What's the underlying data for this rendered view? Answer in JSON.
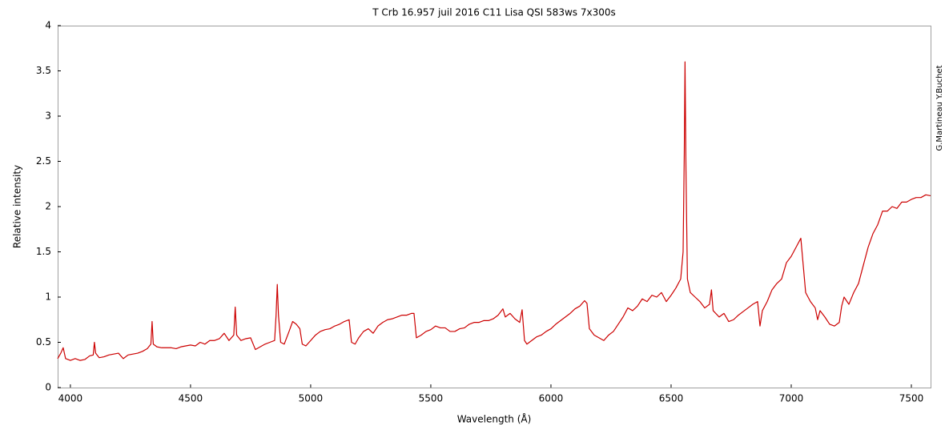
{
  "chart_data": {
    "type": "line",
    "title": "T Crb  16.957 juil 2016   C11  Lisa  QSI 583ws  7x300s",
    "xlabel": "Wavelength (Å)",
    "ylabel": "Relative intensity",
    "annotation": "G.Martineau Y.Buchet",
    "color": "#cc0000",
    "grid": false,
    "xlim": [
      3947,
      7580
    ],
    "xticks": [
      4000,
      4500,
      5000,
      5500,
      6000,
      6500,
      7000,
      7500
    ],
    "ylim": [
      0,
      4
    ],
    "yticks": [
      0,
      0.5,
      1,
      1.5,
      2,
      2.5,
      3,
      3.5,
      4
    ],
    "x": [
      3947,
      3960,
      3970,
      3980,
      4000,
      4020,
      4040,
      4060,
      4080,
      4095,
      4100,
      4105,
      4120,
      4140,
      4160,
      4180,
      4200,
      4220,
      4240,
      4260,
      4280,
      4300,
      4320,
      4335,
      4340,
      4345,
      4360,
      4380,
      4400,
      4420,
      4440,
      4460,
      4480,
      4500,
      4520,
      4540,
      4560,
      4580,
      4600,
      4620,
      4640,
      4660,
      4680,
      4686,
      4692,
      4710,
      4730,
      4750,
      4770,
      4790,
      4810,
      4830,
      4850,
      4856,
      4861,
      4866,
      4875,
      4890,
      4910,
      4925,
      4940,
      4955,
      4965,
      4980,
      5000,
      5020,
      5040,
      5060,
      5080,
      5100,
      5120,
      5140,
      5160,
      5170,
      5185,
      5200,
      5220,
      5240,
      5260,
      5280,
      5300,
      5320,
      5340,
      5360,
      5380,
      5400,
      5420,
      5430,
      5440,
      5460,
      5480,
      5500,
      5520,
      5540,
      5560,
      5580,
      5600,
      5620,
      5640,
      5660,
      5680,
      5700,
      5720,
      5740,
      5760,
      5780,
      5800,
      5810,
      5830,
      5850,
      5870,
      5880,
      5890,
      5900,
      5920,
      5940,
      5960,
      5980,
      6000,
      6020,
      6040,
      6060,
      6080,
      6100,
      6120,
      6140,
      6150,
      6160,
      6180,
      6200,
      6220,
      6240,
      6260,
      6280,
      6300,
      6320,
      6340,
      6360,
      6380,
      6400,
      6420,
      6440,
      6460,
      6480,
      6500,
      6520,
      6540,
      6550,
      6555,
      6558,
      6562,
      6568,
      6580,
      6600,
      6620,
      6640,
      6660,
      6668,
      6675,
      6700,
      6720,
      6740,
      6760,
      6780,
      6800,
      6820,
      6840,
      6860,
      6870,
      6880,
      6900,
      6920,
      6940,
      6960,
      6980,
      7000,
      7020,
      7040,
      7050,
      7060,
      7080,
      7100,
      7110,
      7120,
      7140,
      7160,
      7180,
      7200,
      7210,
      7220,
      7240,
      7260,
      7280,
      7300,
      7320,
      7340,
      7360,
      7380,
      7400,
      7420,
      7440,
      7460,
      7480,
      7500,
      7520,
      7540,
      7560,
      7580
    ],
    "values": [
      0.32,
      0.38,
      0.44,
      0.32,
      0.3,
      0.32,
      0.3,
      0.31,
      0.35,
      0.36,
      0.5,
      0.38,
      0.33,
      0.34,
      0.36,
      0.37,
      0.38,
      0.32,
      0.36,
      0.37,
      0.38,
      0.4,
      0.43,
      0.48,
      0.73,
      0.48,
      0.45,
      0.44,
      0.44,
      0.44,
      0.43,
      0.45,
      0.46,
      0.47,
      0.46,
      0.5,
      0.48,
      0.52,
      0.52,
      0.54,
      0.6,
      0.52,
      0.58,
      0.89,
      0.58,
      0.52,
      0.54,
      0.55,
      0.42,
      0.45,
      0.48,
      0.5,
      0.52,
      0.8,
      1.14,
      0.8,
      0.5,
      0.48,
      0.62,
      0.73,
      0.7,
      0.65,
      0.48,
      0.46,
      0.52,
      0.58,
      0.62,
      0.64,
      0.65,
      0.68,
      0.7,
      0.73,
      0.75,
      0.5,
      0.48,
      0.55,
      0.62,
      0.65,
      0.6,
      0.68,
      0.72,
      0.75,
      0.76,
      0.78,
      0.8,
      0.8,
      0.82,
      0.82,
      0.55,
      0.58,
      0.62,
      0.64,
      0.68,
      0.66,
      0.66,
      0.62,
      0.62,
      0.65,
      0.66,
      0.7,
      0.72,
      0.72,
      0.74,
      0.74,
      0.76,
      0.8,
      0.87,
      0.78,
      0.82,
      0.76,
      0.72,
      0.86,
      0.52,
      0.48,
      0.52,
      0.56,
      0.58,
      0.62,
      0.65,
      0.7,
      0.74,
      0.78,
      0.82,
      0.87,
      0.9,
      0.96,
      0.93,
      0.65,
      0.58,
      0.55,
      0.52,
      0.58,
      0.62,
      0.7,
      0.78,
      0.88,
      0.85,
      0.9,
      0.98,
      0.95,
      1.02,
      1.0,
      1.05,
      0.95,
      1.02,
      1.1,
      1.2,
      1.5,
      2.6,
      3.6,
      2.4,
      1.2,
      1.05,
      1.0,
      0.95,
      0.88,
      0.92,
      1.08,
      0.85,
      0.78,
      0.82,
      0.73,
      0.75,
      0.8,
      0.84,
      0.88,
      0.92,
      0.95,
      0.68,
      0.85,
      0.95,
      1.08,
      1.15,
      1.2,
      1.38,
      1.45,
      1.55,
      1.65,
      1.35,
      1.05,
      0.95,
      0.88,
      0.75,
      0.85,
      0.78,
      0.7,
      0.68,
      0.72,
      0.9,
      1.0,
      0.92,
      1.05,
      1.15,
      1.35,
      1.55,
      1.7,
      1.8,
      1.95,
      1.95,
      2.0,
      1.98,
      2.05,
      2.05,
      2.08,
      2.1,
      2.1,
      2.13,
      2.12
    ]
  }
}
